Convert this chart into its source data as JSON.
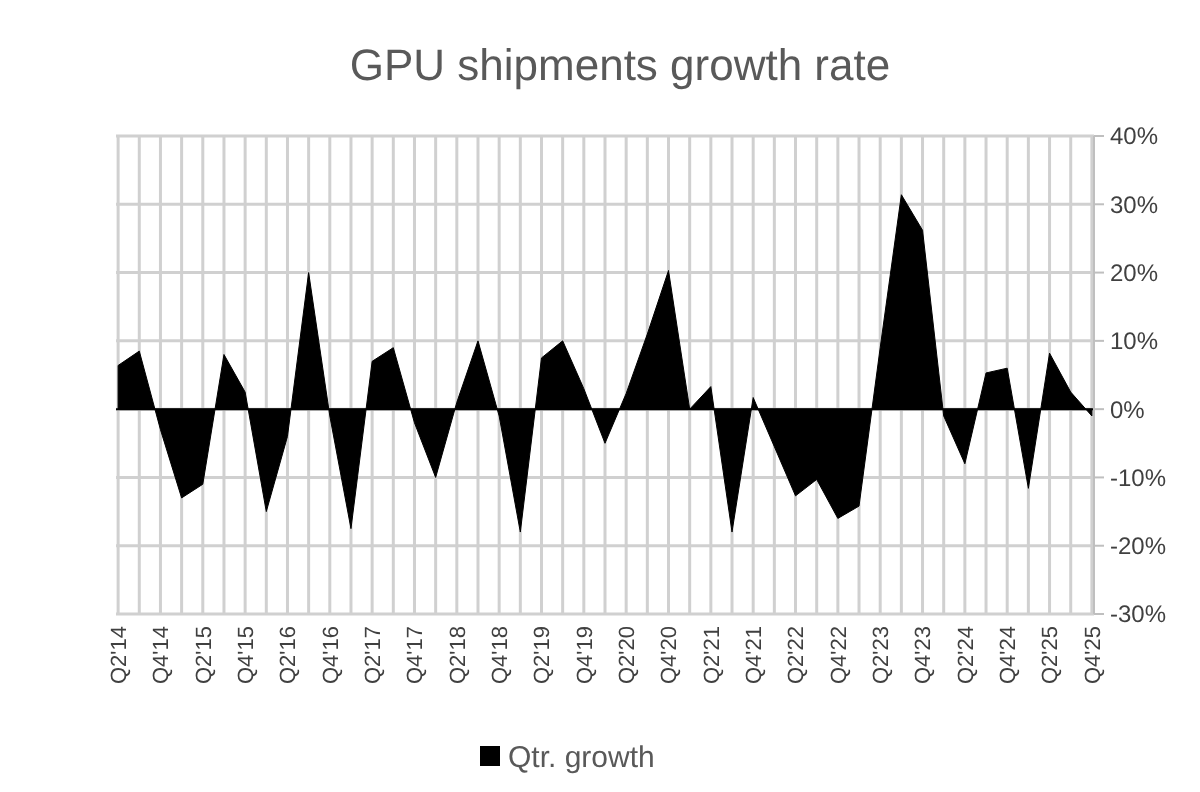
{
  "chart_data": {
    "type": "area",
    "title": "GPU shipments growth rate",
    "categories": [
      "Q2'14",
      null,
      "Q4'14",
      null,
      "Q2'15",
      null,
      "Q4'15",
      null,
      "Q2'16",
      null,
      "Q4'16",
      null,
      "Q2'17",
      null,
      "Q4'17",
      null,
      "Q2'18",
      null,
      "Q4'18",
      null,
      "Q2'19",
      null,
      "Q4'19",
      null,
      "Q2'20",
      null,
      "Q4'20",
      null,
      "Q2'21",
      null,
      "Q4'21",
      null,
      "Q2'22",
      null,
      "Q4'22",
      null,
      "Q2'23",
      null,
      "Q4'23",
      null,
      "Q2'24",
      null,
      "Q4'24",
      null,
      "Q2'25",
      null,
      "Q4'25"
    ],
    "series": [
      {
        "name": "Qtr. growth",
        "color": "#000000",
        "values": [
          6.4,
          8.5,
          -3,
          -13,
          -11,
          8,
          2.5,
          -15,
          -4,
          20,
          -1,
          -17.5,
          7,
          9,
          -2,
          -10,
          1,
          10,
          -1,
          -18,
          7.5,
          10,
          3,
          -5,
          2.3,
          11,
          20.3,
          0,
          3.3,
          -18,
          1.7,
          -5.5,
          -12.7,
          -10.3,
          -16,
          -14.2,
          9,
          31.4,
          26.2,
          -1,
          -8,
          5.3,
          6,
          -11.6,
          8.2,
          2.5,
          -1
        ]
      }
    ],
    "ylim": [
      -30,
      40
    ],
    "yticks": [
      {
        "value": -30,
        "label": "-30%"
      },
      {
        "value": -20,
        "label": "-20%"
      },
      {
        "value": -10,
        "label": "-10%"
      },
      {
        "value": 0,
        "label": "0%"
      },
      {
        "value": 10,
        "label": "10%"
      },
      {
        "value": 20,
        "label": "20%"
      },
      {
        "value": 30,
        "label": "30%"
      },
      {
        "value": 40,
        "label": "40%"
      }
    ],
    "grid": true,
    "legend": "bottom"
  }
}
